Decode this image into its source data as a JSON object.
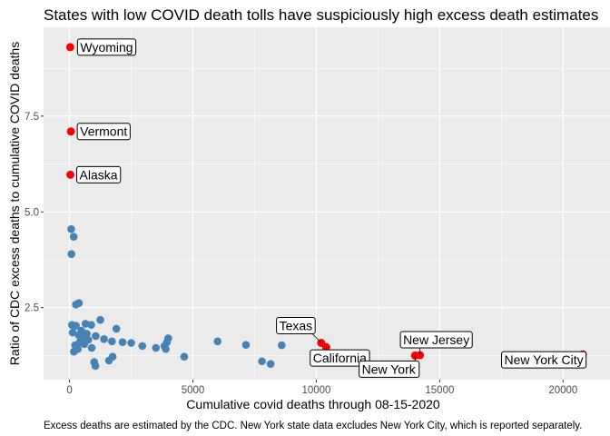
{
  "chart_data": {
    "type": "scatter",
    "title": "States with low COVID death tolls have suspiciously high excess death estimates",
    "xlabel": "Cumulative covid deaths through 08-15-2020",
    "ylabel": "Ratio of CDC excess deaths to cumulative COVID deaths",
    "caption": "Excess deaths are estimated by the CDC. New York state data excludes New York City, which is reported separately.",
    "xlim": [
      -1050,
      21900
    ],
    "ylim": [
      0.62,
      9.82
    ],
    "xticks": [
      0,
      5000,
      10000,
      15000,
      20000
    ],
    "xtick_labels": [
      "0",
      "5000",
      "10000",
      "15000",
      "20000"
    ],
    "yticks": [
      2.5,
      5.0,
      7.5
    ],
    "ytick_labels": [
      "2.5",
      "5.0",
      "7.5"
    ],
    "grid": true,
    "legend": "none",
    "colors": {
      "panel": "#ebebeb",
      "grid": "#ffffff",
      "normal": "#4682b4",
      "highlight": "#ff0000"
    },
    "highlighted": [
      {
        "label": "Wyoming",
        "x": 30,
        "y": 9.3
      },
      {
        "label": "Vermont",
        "x": 58,
        "y": 7.1
      },
      {
        "label": "Alaska",
        "x": 36,
        "y": 5.97
      },
      {
        "label": "Texas",
        "x": 10200,
        "y": 1.58
      },
      {
        "label": "California",
        "x": 10400,
        "y": 1.47
      },
      {
        "label": "New Jersey",
        "x": 14200,
        "y": 1.26
      },
      {
        "label": "New York",
        "x": 14000,
        "y": 1.25
      },
      {
        "label": "New York City",
        "x": 20800,
        "y": 1.28
      }
    ],
    "points": [
      {
        "x": 70,
        "y": 4.55
      },
      {
        "x": 170,
        "y": 4.35
      },
      {
        "x": 80,
        "y": 3.9
      },
      {
        "x": 380,
        "y": 2.62
      },
      {
        "x": 260,
        "y": 2.58
      },
      {
        "x": 100,
        "y": 2.05
      },
      {
        "x": 260,
        "y": 2.03
      },
      {
        "x": 650,
        "y": 2.08
      },
      {
        "x": 880,
        "y": 2.05
      },
      {
        "x": 1250,
        "y": 2.18
      },
      {
        "x": 1900,
        "y": 1.95
      },
      {
        "x": 130,
        "y": 1.85
      },
      {
        "x": 380,
        "y": 1.78
      },
      {
        "x": 480,
        "y": 1.9
      },
      {
        "x": 560,
        "y": 1.72
      },
      {
        "x": 700,
        "y": 1.82
      },
      {
        "x": 1060,
        "y": 1.76
      },
      {
        "x": 230,
        "y": 1.52
      },
      {
        "x": 420,
        "y": 1.6
      },
      {
        "x": 600,
        "y": 1.55
      },
      {
        "x": 760,
        "y": 1.66
      },
      {
        "x": 1400,
        "y": 1.68
      },
      {
        "x": 1720,
        "y": 1.62
      },
      {
        "x": 2150,
        "y": 1.6
      },
      {
        "x": 2500,
        "y": 1.58
      },
      {
        "x": 2950,
        "y": 1.5
      },
      {
        "x": 3500,
        "y": 1.45
      },
      {
        "x": 3850,
        "y": 1.5
      },
      {
        "x": 3950,
        "y": 1.6
      },
      {
        "x": 4000,
        "y": 1.7
      },
      {
        "x": 3900,
        "y": 1.42
      },
      {
        "x": 4650,
        "y": 1.22
      },
      {
        "x": 6000,
        "y": 1.62
      },
      {
        "x": 7150,
        "y": 1.53
      },
      {
        "x": 7800,
        "y": 1.1
      },
      {
        "x": 8150,
        "y": 1.03
      },
      {
        "x": 8600,
        "y": 1.52
      },
      {
        "x": 180,
        "y": 1.35
      },
      {
        "x": 340,
        "y": 1.42
      },
      {
        "x": 900,
        "y": 1.45
      },
      {
        "x": 1750,
        "y": 1.22
      },
      {
        "x": 1600,
        "y": 1.12
      },
      {
        "x": 1000,
        "y": 1.08
      },
      {
        "x": 1050,
        "y": 0.98
      }
    ]
  }
}
